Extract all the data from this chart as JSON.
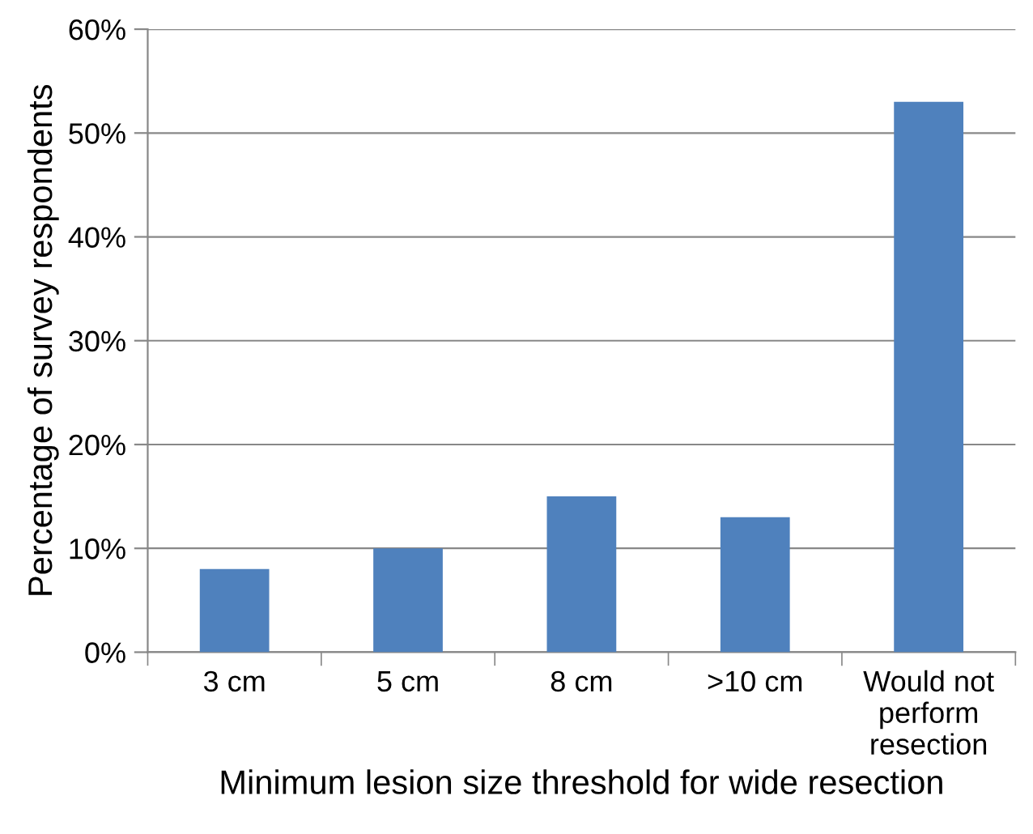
{
  "chart_data": {
    "type": "bar",
    "xlabel": "Minimum lesion size threshold for wide resection",
    "ylabel": "Percentage of survey respondents",
    "categories": [
      "3 cm",
      "5 cm",
      "8 cm",
      ">10 cm",
      "Would not\nperform\nresection"
    ],
    "values": [
      8,
      10,
      15,
      13,
      53
    ],
    "color": "#4f81bd",
    "ylim": [
      0,
      60
    ],
    "yticks": [
      {
        "value": 0,
        "label": "0%"
      },
      {
        "value": 10,
        "label": "10%"
      },
      {
        "value": 20,
        "label": "20%"
      },
      {
        "value": 30,
        "label": "30%"
      },
      {
        "value": 40,
        "label": "40%"
      },
      {
        "value": 50,
        "label": "50%"
      },
      {
        "value": 60,
        "label": "60%"
      }
    ],
    "grid": "y"
  }
}
